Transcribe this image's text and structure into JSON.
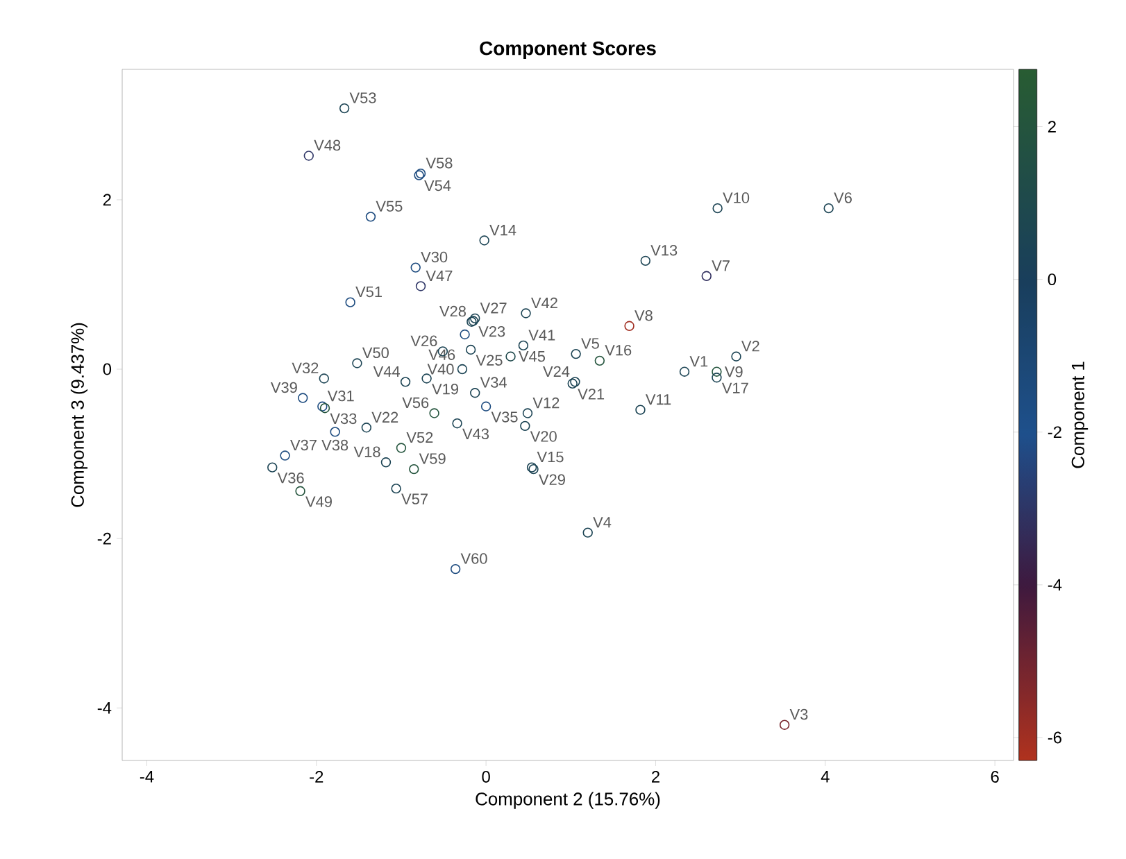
{
  "chart_data": {
    "type": "scatter",
    "title": "Component Scores",
    "xlabel": "Component 2 (15.76%)",
    "ylabel": "Component 3 (9.437%)",
    "clabel": "Component 1",
    "xlim": [
      -4.29,
      6.22
    ],
    "ylim": [
      -4.62,
      3.54
    ],
    "xticks": [
      -4,
      -2,
      0,
      2,
      4,
      6
    ],
    "yticks": [
      -4,
      -2,
      0,
      2
    ],
    "clim": [
      -6.3,
      2.75
    ],
    "cticks": [
      -6,
      -4,
      -2,
      0,
      2
    ],
    "marker": "circle",
    "x": [
      2.34,
      2.95,
      3.52,
      1.2,
      1.06,
      4.04,
      2.6,
      1.69,
      2.72,
      2.73,
      1.82,
      0.49,
      1.88,
      -0.02,
      0.54,
      1.34,
      2.72,
      -1.18,
      -0.7,
      0.46,
      1.02,
      -1.41,
      -0.15,
      1.05,
      -0.18,
      -0.51,
      -0.13,
      -0.17,
      0.56,
      -0.83,
      -1.93,
      -1.91,
      -1.9,
      -0.13,
      0.0,
      -2.52,
      -2.37,
      -1.78,
      -2.16,
      -0.28,
      0.44,
      0.47,
      -0.34,
      -0.95,
      0.29,
      -0.25,
      -0.77,
      -2.09,
      -2.19,
      -1.52,
      -1.6,
      -1.0,
      -1.67,
      -0.79,
      -1.36,
      -0.61,
      -1.06,
      -0.77,
      -0.85,
      -0.36
    ],
    "values": [
      -0.03,
      0.15,
      -4.2,
      -1.93,
      0.18,
      1.9,
      1.1,
      0.51,
      -0.03,
      1.9,
      -0.48,
      -0.52,
      1.28,
      1.52,
      -1.16,
      0.1,
      -0.1,
      -1.1,
      -0.11,
      -0.67,
      -0.17,
      -0.69,
      0.57,
      -0.15,
      0.23,
      0.21,
      0.6,
      0.56,
      -1.18,
      1.2,
      -0.44,
      -0.11,
      -0.46,
      -0.28,
      -0.44,
      -1.16,
      -1.02,
      -0.74,
      -0.34,
      0.0,
      0.28,
      0.66,
      -0.64,
      -0.15,
      0.15,
      0.41,
      0.98,
      2.52,
      -1.44,
      0.07,
      0.79,
      -0.93,
      3.08,
      2.29,
      1.8,
      -0.52,
      -1.41,
      2.31,
      -1.18,
      -2.36
    ],
    "cvalues": [
      0.5,
      0.5,
      -5.2,
      0.5,
      0.5,
      0.5,
      -3.2,
      -6.0,
      2.0,
      0.5,
      0.5,
      0.5,
      0.5,
      0.5,
      0.5,
      2.0,
      0.5,
      0.5,
      0.5,
      0.5,
      0.5,
      0.5,
      0.5,
      0.5,
      0.5,
      0.5,
      0.5,
      0.5,
      0.5,
      -1.5,
      -1.5,
      0.5,
      2.0,
      0.5,
      -1.5,
      0.5,
      -1.5,
      -1.5,
      -1.5,
      0.5,
      0.5,
      0.5,
      0.5,
      0.5,
      1.0,
      -1.5,
      -3.0,
      -3.0,
      2.0,
      0.5,
      -1.5,
      2.0,
      0.5,
      -1.5,
      -1.5,
      2.0,
      0.5,
      -1.5,
      2.0,
      -1.5
    ],
    "annotations": [
      {
        "text": "V1",
        "x": 2.34,
        "y": -0.03
      },
      {
        "text": "V2",
        "x": 2.95,
        "y": 0.15
      },
      {
        "text": "V3",
        "x": 3.52,
        "y": -4.2
      },
      {
        "text": "V4",
        "x": 1.2,
        "y": -1.93
      },
      {
        "text": "V5",
        "x": 1.06,
        "y": 0.18
      },
      {
        "text": "V6",
        "x": 4.04,
        "y": 1.9
      },
      {
        "text": "V7",
        "x": 2.6,
        "y": 1.1
      },
      {
        "text": "V8",
        "x": 1.69,
        "y": 0.51
      },
      {
        "text": "V9",
        "x": 2.72,
        "y": -0.03
      },
      {
        "text": "V10",
        "x": 2.73,
        "y": 1.9
      },
      {
        "text": "V11",
        "x": 1.82,
        "y": -0.48
      },
      {
        "text": "V12",
        "x": 0.49,
        "y": -0.52
      },
      {
        "text": "V13",
        "x": 1.88,
        "y": 1.28
      },
      {
        "text": "V14",
        "x": -0.02,
        "y": 1.52
      },
      {
        "text": "V15",
        "x": 0.54,
        "y": -1.16
      },
      {
        "text": "V16",
        "x": 1.34,
        "y": 0.1
      },
      {
        "text": "V17",
        "x": 2.72,
        "y": -0.1
      },
      {
        "text": "V18",
        "x": -1.18,
        "y": -1.1
      },
      {
        "text": "V19",
        "x": -0.7,
        "y": -0.11
      },
      {
        "text": "V20",
        "x": 0.46,
        "y": -0.67
      },
      {
        "text": "V21",
        "x": 1.02,
        "y": -0.17
      },
      {
        "text": "V22",
        "x": -1.41,
        "y": -0.69
      },
      {
        "text": "V23",
        "x": -0.15,
        "y": 0.57
      },
      {
        "text": "V24",
        "x": 1.05,
        "y": -0.15
      },
      {
        "text": "V25",
        "x": -0.18,
        "y": 0.23
      },
      {
        "text": "V26",
        "x": -0.51,
        "y": 0.21
      },
      {
        "text": "V27",
        "x": -0.13,
        "y": 0.6
      },
      {
        "text": "V28",
        "x": -0.17,
        "y": 0.56
      },
      {
        "text": "V29",
        "x": 0.56,
        "y": -1.18
      },
      {
        "text": "V30",
        "x": -0.83,
        "y": 1.2
      },
      {
        "text": "V31",
        "x": -1.93,
        "y": -0.44
      },
      {
        "text": "V32",
        "x": -1.91,
        "y": -0.11
      },
      {
        "text": "V33",
        "x": -1.9,
        "y": -0.46
      },
      {
        "text": "V34",
        "x": -0.13,
        "y": -0.28
      },
      {
        "text": "V35",
        "x": 0.0,
        "y": -0.44
      },
      {
        "text": "V36",
        "x": -2.52,
        "y": -1.16
      },
      {
        "text": "V37",
        "x": -2.37,
        "y": -1.02
      },
      {
        "text": "V38",
        "x": -1.78,
        "y": -0.74
      },
      {
        "text": "V39",
        "x": -2.16,
        "y": -0.34
      },
      {
        "text": "V40",
        "x": -0.28,
        "y": 0.0
      },
      {
        "text": "V41",
        "x": 0.44,
        "y": 0.28
      },
      {
        "text": "V42",
        "x": 0.47,
        "y": 0.66
      },
      {
        "text": "V43",
        "x": -0.34,
        "y": -0.64
      },
      {
        "text": "V44",
        "x": -0.95,
        "y": -0.15
      },
      {
        "text": "V45",
        "x": 0.29,
        "y": 0.15
      },
      {
        "text": "V46",
        "x": -0.25,
        "y": 0.41
      },
      {
        "text": "V47",
        "x": -0.77,
        "y": 0.98
      },
      {
        "text": "V48",
        "x": -2.09,
        "y": 2.52
      },
      {
        "text": "V49",
        "x": -2.19,
        "y": -1.44
      },
      {
        "text": "V50",
        "x": -1.52,
        "y": 0.07
      },
      {
        "text": "V51",
        "x": -1.6,
        "y": 0.79
      },
      {
        "text": "V52",
        "x": -1.0,
        "y": -0.93
      },
      {
        "text": "V53",
        "x": -1.67,
        "y": 3.08
      },
      {
        "text": "V54",
        "x": -0.79,
        "y": 2.29
      },
      {
        "text": "V55",
        "x": -1.36,
        "y": 1.8
      },
      {
        "text": "V56",
        "x": -0.61,
        "y": -0.52
      },
      {
        "text": "V57",
        "x": -1.06,
        "y": -1.41
      },
      {
        "text": "V58",
        "x": -0.77,
        "y": 2.31
      },
      {
        "text": "V59",
        "x": -0.85,
        "y": -1.18
      },
      {
        "text": "V60",
        "x": -0.36,
        "y": -2.36
      }
    ]
  }
}
